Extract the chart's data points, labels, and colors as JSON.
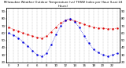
{
  "title": "Milwaukee Weather Outdoor Temperature (vs) THSW Index per Hour (Last 24 Hours)",
  "background_color": "#ffffff",
  "plot_bg_color": "#ffffff",
  "grid_color": "#888888",
  "temp_color": "#dd0000",
  "thsw_color": "#0000dd",
  "hours": [
    0,
    1,
    2,
    3,
    4,
    5,
    6,
    7,
    8,
    9,
    10,
    11,
    12,
    13,
    14,
    15,
    16,
    17,
    18,
    19,
    20,
    21,
    22,
    23
  ],
  "temp_values": [
    68,
    65,
    63,
    60,
    58,
    56,
    54,
    53,
    56,
    62,
    68,
    74,
    78,
    79,
    77,
    75,
    72,
    70,
    68,
    67,
    67,
    66,
    66,
    67
  ],
  "thsw_values": [
    60,
    57,
    53,
    48,
    42,
    36,
    30,
    28,
    32,
    44,
    58,
    70,
    78,
    80,
    76,
    68,
    56,
    46,
    38,
    33,
    30,
    28,
    30,
    32
  ],
  "ylim_min": 20,
  "ylim_max": 95,
  "yticks_left": [
    20,
    30,
    40,
    50,
    60,
    70,
    80,
    90
  ],
  "ytick_labels_left": [
    "20",
    "30",
    "40",
    "50",
    "60",
    "70",
    "80",
    "90"
  ],
  "yticks_right": [
    20,
    30,
    40,
    50,
    60,
    70,
    80,
    90
  ],
  "ytick_labels_right": [
    "20",
    "30",
    "40",
    "50",
    "60",
    "70",
    "80",
    "90"
  ],
  "xtick_positions": [
    0,
    2,
    4,
    6,
    8,
    10,
    12,
    14,
    16,
    18,
    20,
    22
  ],
  "xtick_labels": [
    "0",
    "2",
    "4",
    "6",
    "8",
    "10",
    "12",
    "14",
    "16",
    "18",
    "20",
    "22"
  ],
  "vgrid_positions": [
    0,
    1,
    2,
    3,
    4,
    5,
    6,
    7,
    8,
    9,
    10,
    11,
    12,
    13,
    14,
    15,
    16,
    17,
    18,
    19,
    20,
    21,
    22,
    23
  ],
  "figwidth": 1.6,
  "figheight": 0.87,
  "dpi": 100,
  "title_fontsize": 2.8,
  "tick_fontsize": 2.8,
  "line_lw": 0.9,
  "dot_size": 1.5
}
